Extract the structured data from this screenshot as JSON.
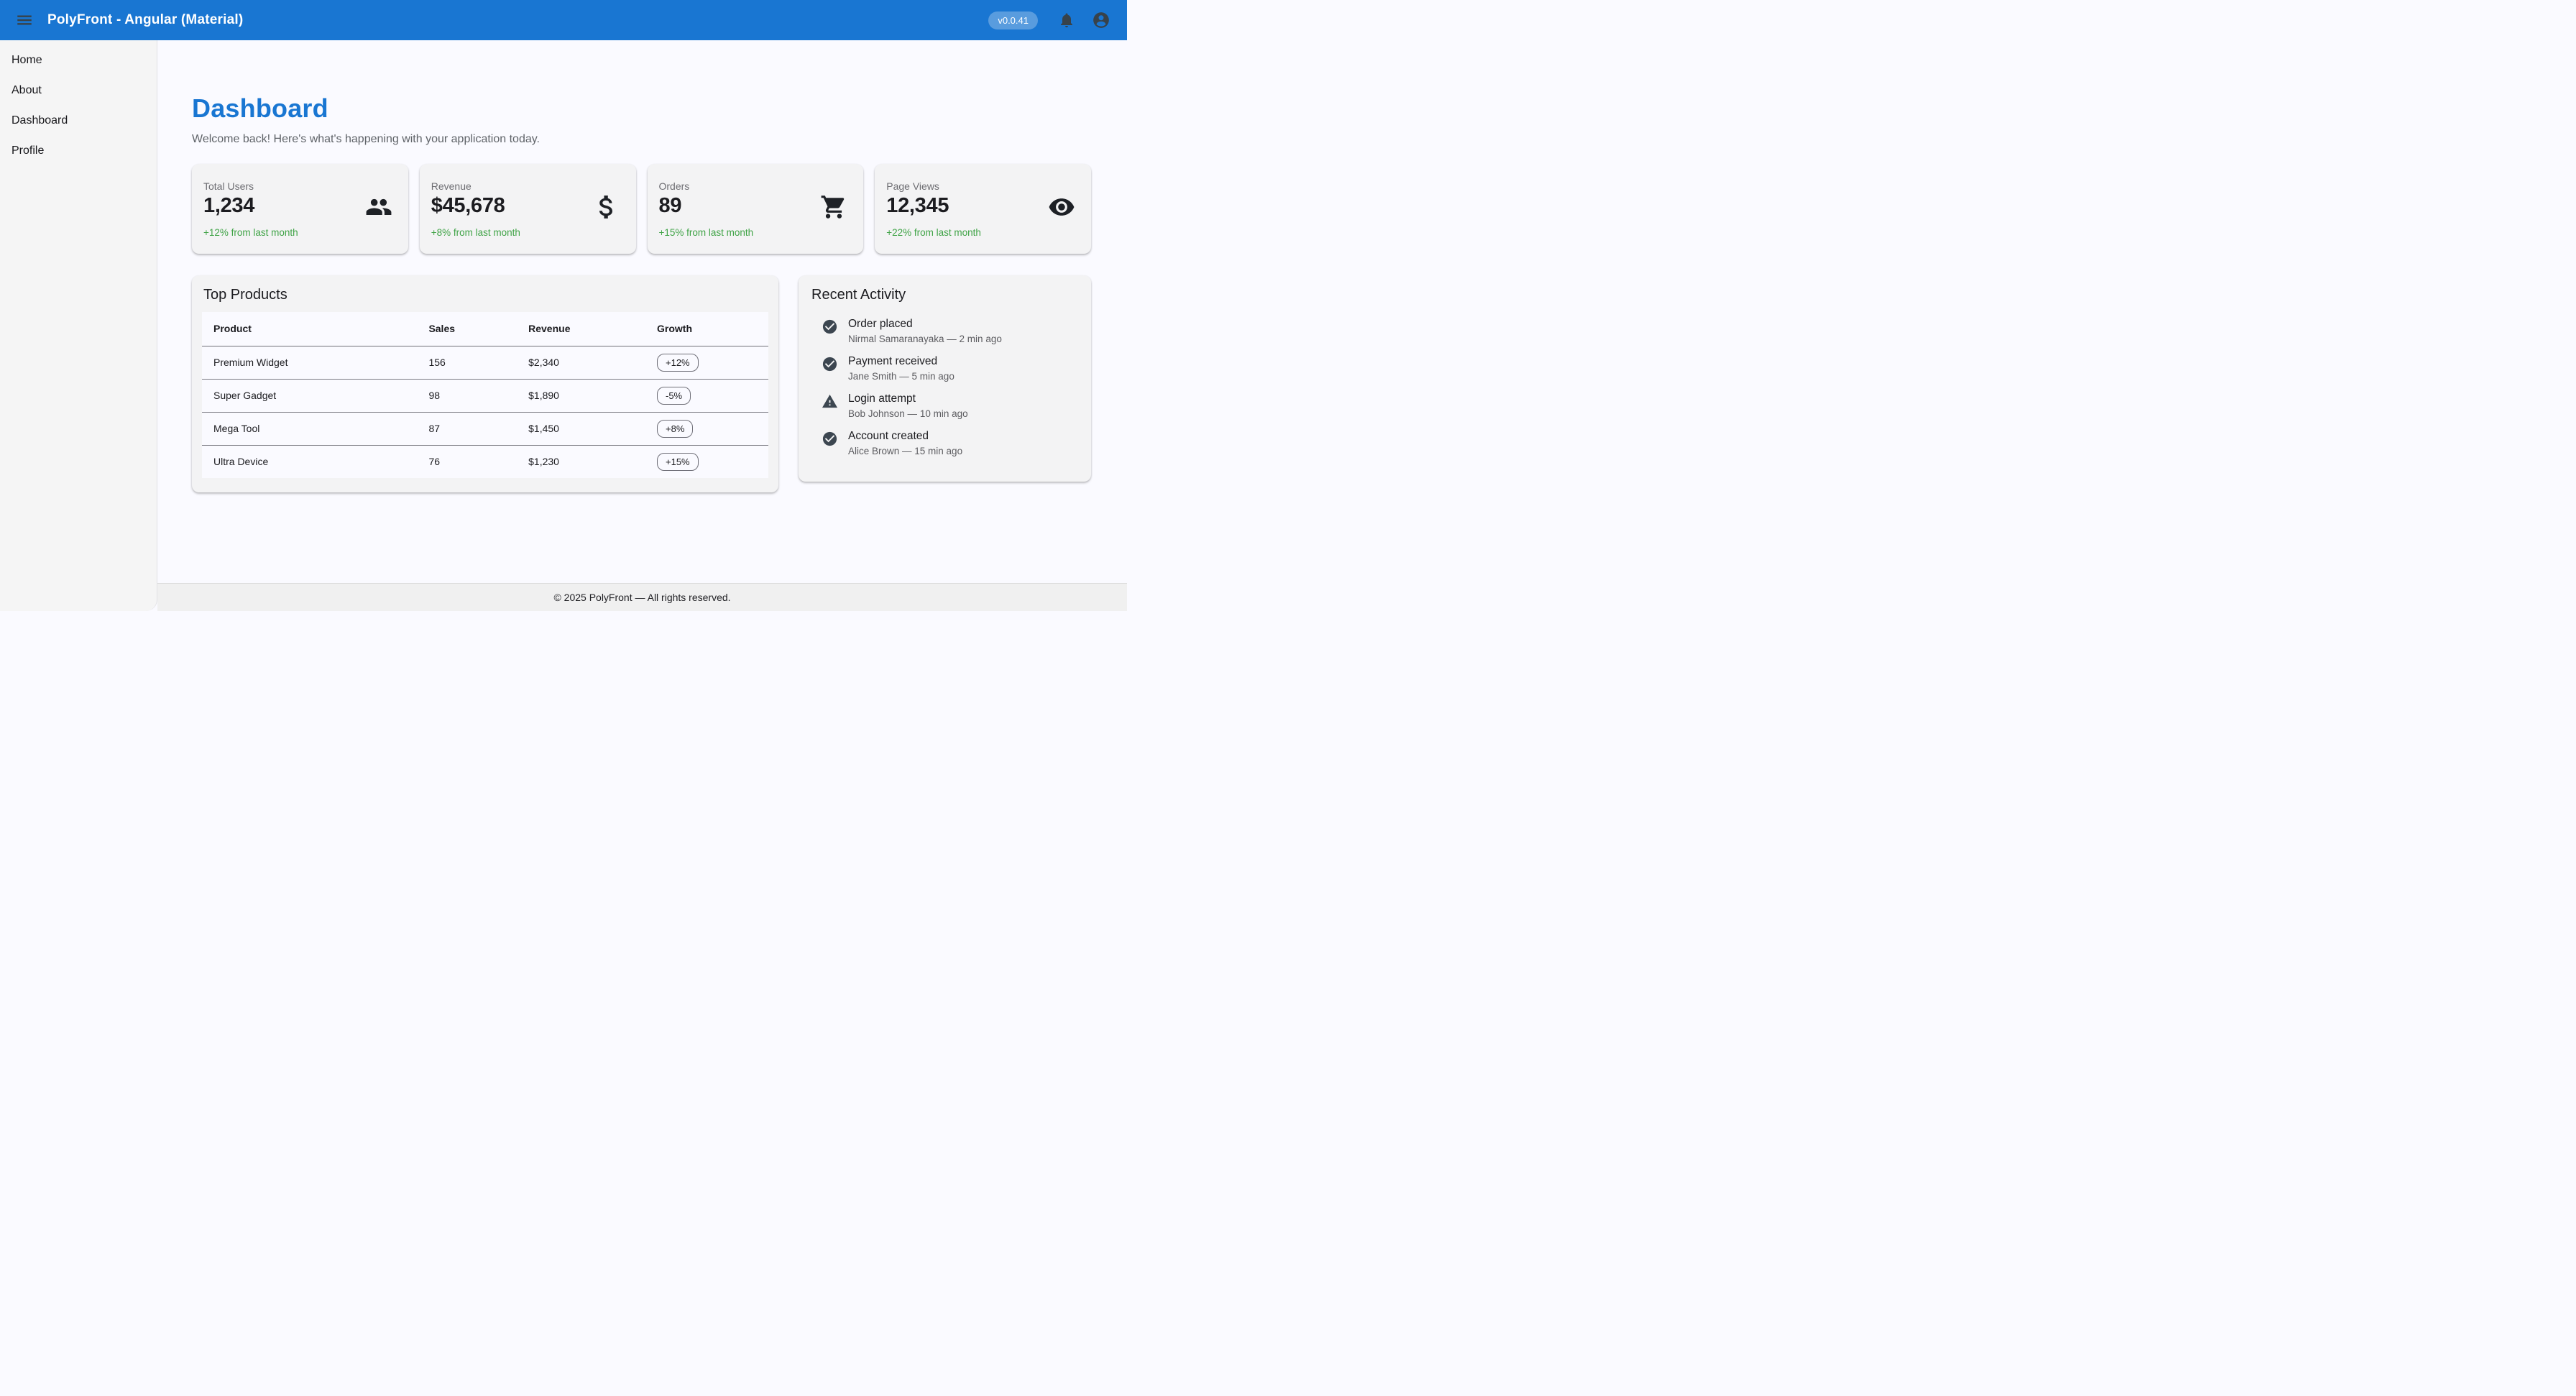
{
  "app": {
    "title": "PolyFront - Angular (Material)",
    "version": "v0.0.41"
  },
  "header": {
    "icons": [
      "hamburger-icon",
      "bell-icon",
      "account-circle-icon"
    ]
  },
  "sidebar": {
    "items": [
      {
        "label": "Home"
      },
      {
        "label": "About"
      },
      {
        "label": "Dashboard"
      },
      {
        "label": "Profile"
      }
    ]
  },
  "page": {
    "title": "Dashboard",
    "subtitle": "Welcome back! Here's what's happening with your application today."
  },
  "stats": [
    {
      "label": "Total Users",
      "value": "1,234",
      "delta": "+12% from last month",
      "icon": "people-icon"
    },
    {
      "label": "Revenue",
      "value": "$45,678",
      "delta": "+8% from last month",
      "icon": "dollar-icon"
    },
    {
      "label": "Orders",
      "value": "89",
      "delta": "+15% from last month",
      "icon": "cart-icon"
    },
    {
      "label": "Page Views",
      "value": "12,345",
      "delta": "+22% from last month",
      "icon": "eye-icon"
    }
  ],
  "top_products": {
    "title": "Top Products",
    "columns": [
      "Product",
      "Sales",
      "Revenue",
      "Growth"
    ],
    "rows": [
      {
        "product": "Premium Widget",
        "sales": "156",
        "revenue": "$2,340",
        "growth": "+12%"
      },
      {
        "product": "Super Gadget",
        "sales": "98",
        "revenue": "$1,890",
        "growth": "-5%"
      },
      {
        "product": "Mega Tool",
        "sales": "87",
        "revenue": "$1,450",
        "growth": "+8%"
      },
      {
        "product": "Ultra Device",
        "sales": "76",
        "revenue": "$1,230",
        "growth": "+15%"
      }
    ]
  },
  "recent_activity": {
    "title": "Recent Activity",
    "items": [
      {
        "title": "Order placed",
        "meta": "Nirmal Samaranayaka — 2 min ago",
        "icon": "check-circle-icon"
      },
      {
        "title": "Payment received",
        "meta": "Jane Smith — 5 min ago",
        "icon": "check-circle-icon"
      },
      {
        "title": "Login attempt",
        "meta": "Bob Johnson — 10 min ago",
        "icon": "warning-icon"
      },
      {
        "title": "Account created",
        "meta": "Alice Brown — 15 min ago",
        "icon": "check-circle-icon"
      }
    ]
  },
  "footer": {
    "text": "© 2025 PolyFront — All rights reserved."
  },
  "colors": {
    "primary": "#1976d2",
    "success": "#3fa346",
    "toolbar_icon": "#37424a",
    "card_bg": "#f3f3f4",
    "content_bg": "#fafaff",
    "sidebar_bg": "#f5f5f5",
    "footer_bg": "#f0f0f0"
  }
}
